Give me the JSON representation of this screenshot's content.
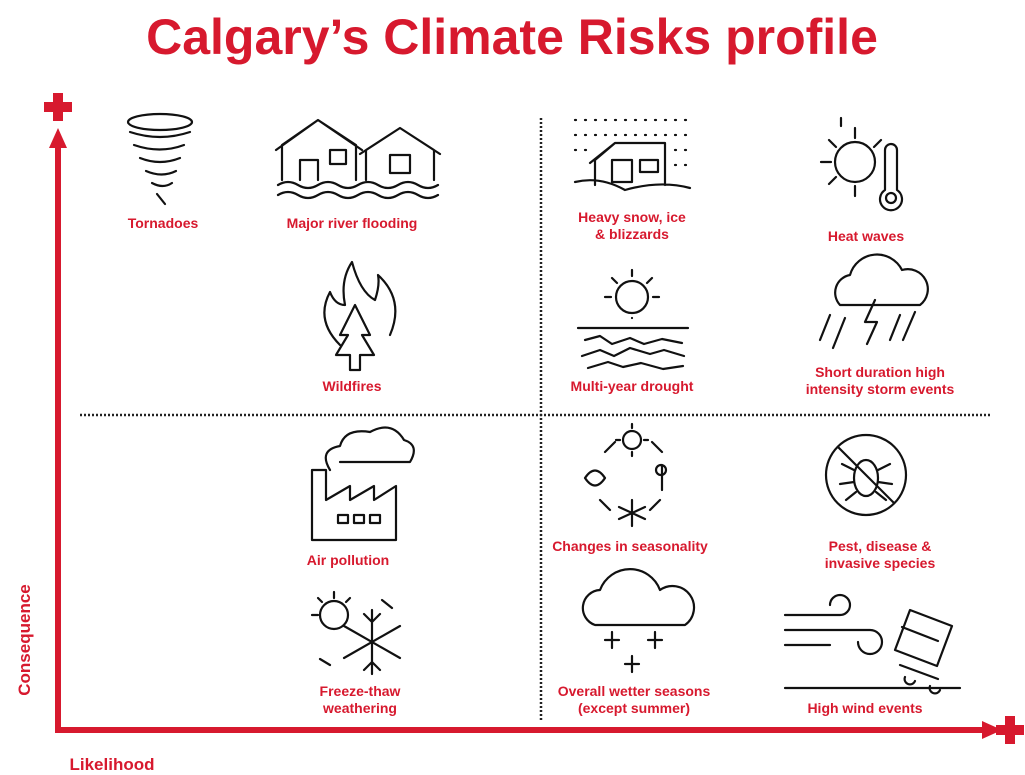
{
  "title": "Calgary’s Climate Risks profile",
  "y_axis_label": "Consequence",
  "x_axis_label": "Likelihood",
  "items": [
    {
      "label": [
        "Tornadoes"
      ]
    },
    {
      "label": [
        "Major river flooding"
      ]
    },
    {
      "label": [
        "Heavy snow, ice",
        "& blizzards"
      ]
    },
    {
      "label": [
        "Heat waves"
      ]
    },
    {
      "label": [
        "Wildfires"
      ]
    },
    {
      "label": [
        "Multi-year drought"
      ]
    },
    {
      "label": [
        "Short duration high",
        "intensity storm events"
      ]
    },
    {
      "label": [
        "Air pollution"
      ]
    },
    {
      "label": [
        "Changes in seasonality"
      ]
    },
    {
      "label": [
        "Pest, disease &",
        "invasive species"
      ]
    },
    {
      "label": [
        "Freeze-thaw",
        "weathering"
      ]
    },
    {
      "label": [
        "Overall wetter seasons",
        "(except summer)"
      ]
    },
    {
      "label": [
        "High wind events"
      ]
    }
  ]
}
